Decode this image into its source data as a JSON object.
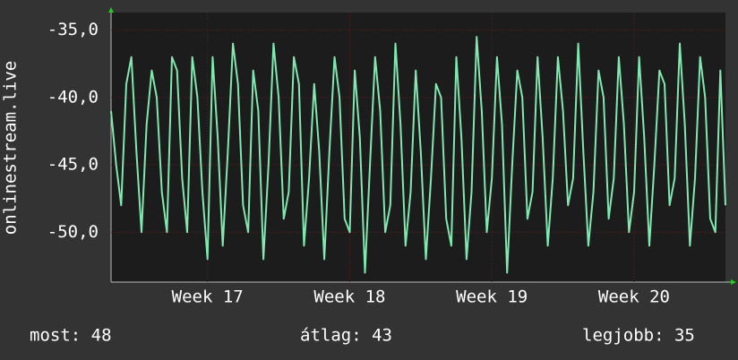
{
  "chart_data": {
    "type": "line",
    "ylabel": "onlinestream.live",
    "color": "#80e8b0",
    "values": [
      -41,
      -45,
      -48,
      -39,
      -37,
      -44,
      -50,
      -42,
      -38,
      -40,
      -47,
      -50,
      -37,
      -38,
      -46,
      -50,
      -37,
      -40,
      -47,
      -52,
      -37,
      -43,
      -51,
      -44,
      -36,
      -39,
      -48,
      -50,
      -38,
      -41,
      -52,
      -45,
      -36,
      -40,
      -49,
      -47,
      -37,
      -39,
      -51,
      -46,
      -39,
      -44,
      -52,
      -44,
      -37,
      -40,
      -49,
      -50,
      -38,
      -43,
      -53,
      -45,
      -37,
      -41,
      -50,
      -48,
      -36,
      -42,
      -51,
      -47,
      -38,
      -44,
      -52,
      -46,
      -39,
      -40,
      -49,
      -51,
      -37,
      -43,
      -52,
      -47,
      -35.5,
      -41,
      -50,
      -46,
      -37,
      -42,
      -53,
      -45,
      -38,
      -40,
      -49,
      -47,
      -37,
      -43,
      -51,
      -46,
      -37,
      -41,
      -48,
      -46,
      -36,
      -44,
      -51,
      -47,
      -38,
      -40,
      -49,
      -46,
      -37,
      -42,
      -50,
      -47,
      -37,
      -43,
      -51,
      -45,
      -38,
      -39,
      -48,
      -46,
      -36,
      -42,
      -51,
      -46,
      -37,
      -40,
      -49,
      -50,
      -38,
      -48
    ],
    "xlim": [
      0,
      121
    ],
    "xticks": [
      {
        "value": 19,
        "label": "Week 17"
      },
      {
        "value": 47,
        "label": "Week 18"
      },
      {
        "value": 75,
        "label": "Week 19"
      },
      {
        "value": 103,
        "label": "Week 20"
      }
    ],
    "ylim": [
      -53.7,
      -33.7
    ],
    "yticks": [
      {
        "value": -35,
        "label": "-35,0"
      },
      {
        "value": -40,
        "label": "-40,0"
      },
      {
        "value": -45,
        "label": "-45,0"
      },
      {
        "value": -50,
        "label": "-50,0"
      }
    ],
    "grid": true,
    "footer": [
      "most: 48",
      "átlag: 43",
      "legjobb: 35"
    ]
  }
}
